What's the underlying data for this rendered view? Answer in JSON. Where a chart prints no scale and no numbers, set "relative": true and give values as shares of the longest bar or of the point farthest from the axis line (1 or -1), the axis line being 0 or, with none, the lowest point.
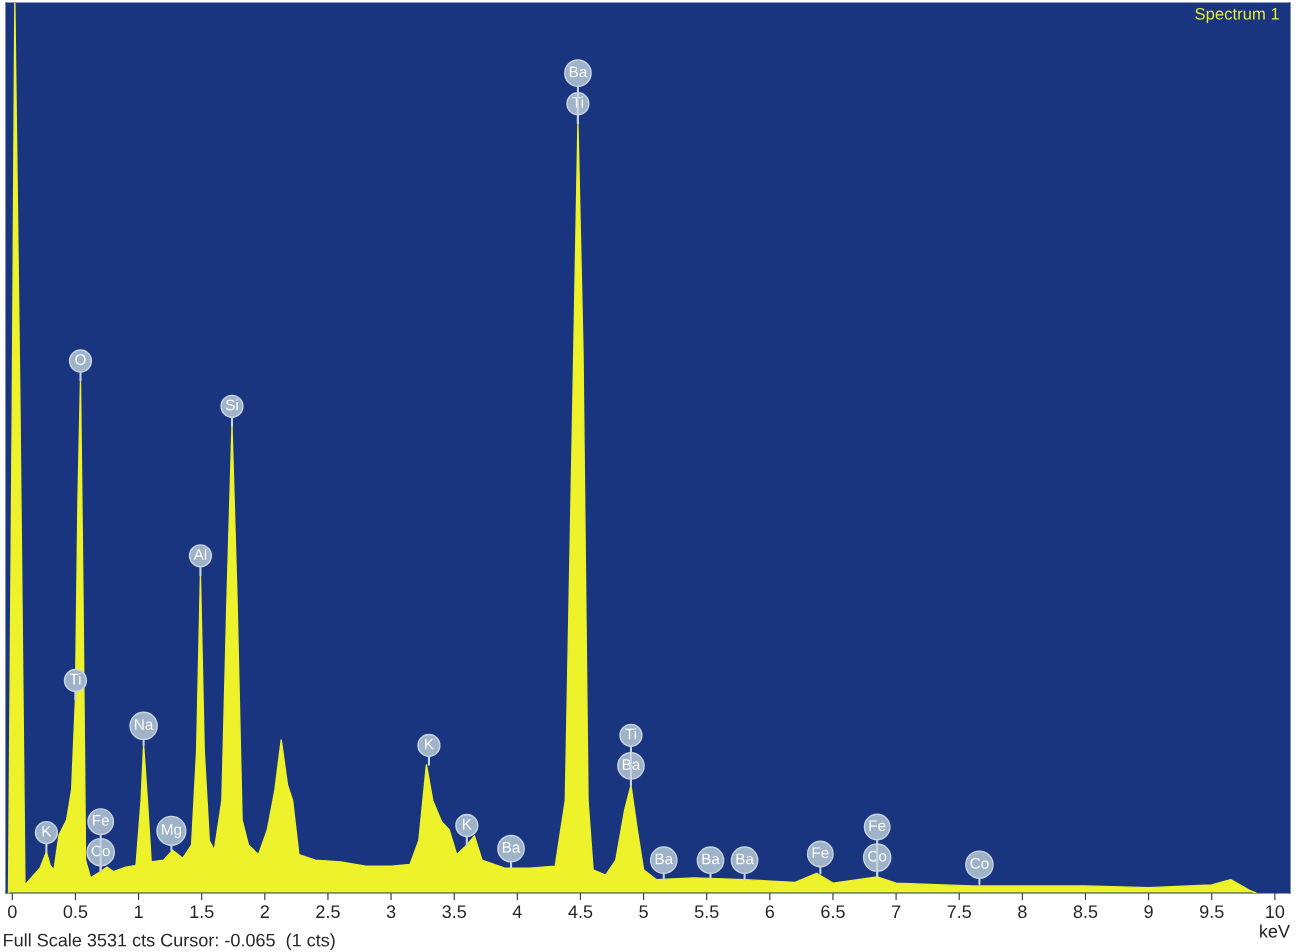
{
  "chart_data": {
    "type": "area",
    "relative": true,
    "xlabel": "keV",
    "xlim": [
      -0.05,
      10.12
    ],
    "xticks": [
      0,
      0.5,
      1,
      1.5,
      2,
      2.5,
      3,
      3.5,
      4,
      4.5,
      5,
      5.5,
      6,
      6.5,
      7,
      7.5,
      8,
      8.5,
      9,
      9.5,
      10
    ],
    "grid": false,
    "legend": false,
    "series": [
      {
        "color": "#eef22a",
        "x": [
          -0.03,
          0.0,
          0.02,
          0.06,
          0.1,
          0.15,
          0.22,
          0.27,
          0.3,
          0.33,
          0.37,
          0.43,
          0.47,
          0.5,
          0.52,
          0.54,
          0.56,
          0.58,
          0.62,
          0.7,
          0.75,
          0.8,
          0.9,
          0.98,
          1.02,
          1.04,
          1.07,
          1.1,
          1.2,
          1.27,
          1.35,
          1.42,
          1.46,
          1.49,
          1.52,
          1.56,
          1.6,
          1.66,
          1.7,
          1.74,
          1.78,
          1.82,
          1.87,
          1.95,
          2.02,
          2.08,
          2.13,
          2.18,
          2.22,
          2.27,
          2.4,
          2.6,
          2.8,
          3.0,
          3.15,
          3.22,
          3.28,
          3.33,
          3.4,
          3.46,
          3.52,
          3.6,
          3.66,
          3.72,
          3.9,
          4.1,
          4.3,
          4.38,
          4.44,
          4.48,
          4.52,
          4.56,
          4.6,
          4.7,
          4.78,
          4.85,
          4.9,
          4.95,
          5.0,
          5.1,
          5.4,
          5.8,
          6.2,
          6.37,
          6.5,
          6.85,
          7.0,
          7.6,
          8.0,
          8.5,
          9.0,
          9.5,
          9.65,
          9.8,
          9.85
        ],
        "values": [
          0,
          0.553,
          1,
          0.553,
          0.009,
          0.017,
          0.028,
          0.046,
          0.031,
          0.026,
          0.065,
          0.082,
          0.116,
          0.217,
          0.441,
          0.576,
          0.329,
          0.037,
          0.017,
          0.024,
          0.029,
          0.024,
          0.029,
          0.031,
          0.104,
          0.166,
          0.104,
          0.035,
          0.037,
          0.048,
          0.039,
          0.054,
          0.16,
          0.357,
          0.16,
          0.059,
          0.048,
          0.104,
          0.329,
          0.525,
          0.329,
          0.082,
          0.054,
          0.043,
          0.071,
          0.116,
          0.172,
          0.121,
          0.104,
          0.043,
          0.037,
          0.035,
          0.03,
          0.03,
          0.032,
          0.059,
          0.144,
          0.104,
          0.08,
          0.071,
          0.043,
          0.054,
          0.064,
          0.037,
          0.028,
          0.028,
          0.03,
          0.104,
          0.553,
          0.865,
          0.609,
          0.104,
          0.026,
          0.02,
          0.037,
          0.093,
          0.121,
          0.071,
          0.026,
          0.015,
          0.017,
          0.015,
          0.012,
          0.022,
          0.011,
          0.018,
          0.011,
          0.008,
          0.008,
          0.008,
          0.006,
          0.009,
          0.015,
          0.003,
          0
        ]
      }
    ],
    "annotations": [
      "Spectrum 1",
      "Full Scale 3531 cts Cursor: -0.065  (1 cts)",
      {
        "text": "K",
        "x": 0.27,
        "y": 0.046
      },
      {
        "text": "Ti",
        "x": 0.5,
        "y": 0.217
      },
      {
        "text": "O",
        "x": 0.54,
        "y": 0.576
      },
      {
        "text": "Co",
        "x": 0.7,
        "y": 0.024
      },
      {
        "text": "Fe",
        "x": 0.7,
        "y": 0.024
      },
      {
        "text": "Na",
        "x": 1.04,
        "y": 0.166
      },
      {
        "text": "Mg",
        "x": 1.26,
        "y": 0.048
      },
      {
        "text": "Al",
        "x": 1.49,
        "y": 0.357
      },
      {
        "text": "Si",
        "x": 1.74,
        "y": 0.525
      },
      {
        "text": "K",
        "x": 3.3,
        "y": 0.144
      },
      {
        "text": "K",
        "x": 3.6,
        "y": 0.054
      },
      {
        "text": "Ba",
        "x": 3.95,
        "y": 0.028
      },
      {
        "text": "Ti",
        "x": 4.48,
        "y": 0.865
      },
      {
        "text": "Ba",
        "x": 4.48,
        "y": 0.865
      },
      {
        "text": "Ba",
        "x": 4.9,
        "y": 0.121
      },
      {
        "text": "Ti",
        "x": 4.9,
        "y": 0.121
      },
      {
        "text": "Ba",
        "x": 5.16,
        "y": 0.015
      },
      {
        "text": "Ba",
        "x": 5.53,
        "y": 0.015
      },
      {
        "text": "Ba",
        "x": 5.8,
        "y": 0.015
      },
      {
        "text": "Fe",
        "x": 6.4,
        "y": 0.022
      },
      {
        "text": "Co",
        "x": 6.85,
        "y": 0.018
      },
      {
        "text": "Fe",
        "x": 6.85,
        "y": 0.018
      },
      {
        "text": "Co",
        "x": 7.66,
        "y": 0.01
      }
    ]
  }
}
